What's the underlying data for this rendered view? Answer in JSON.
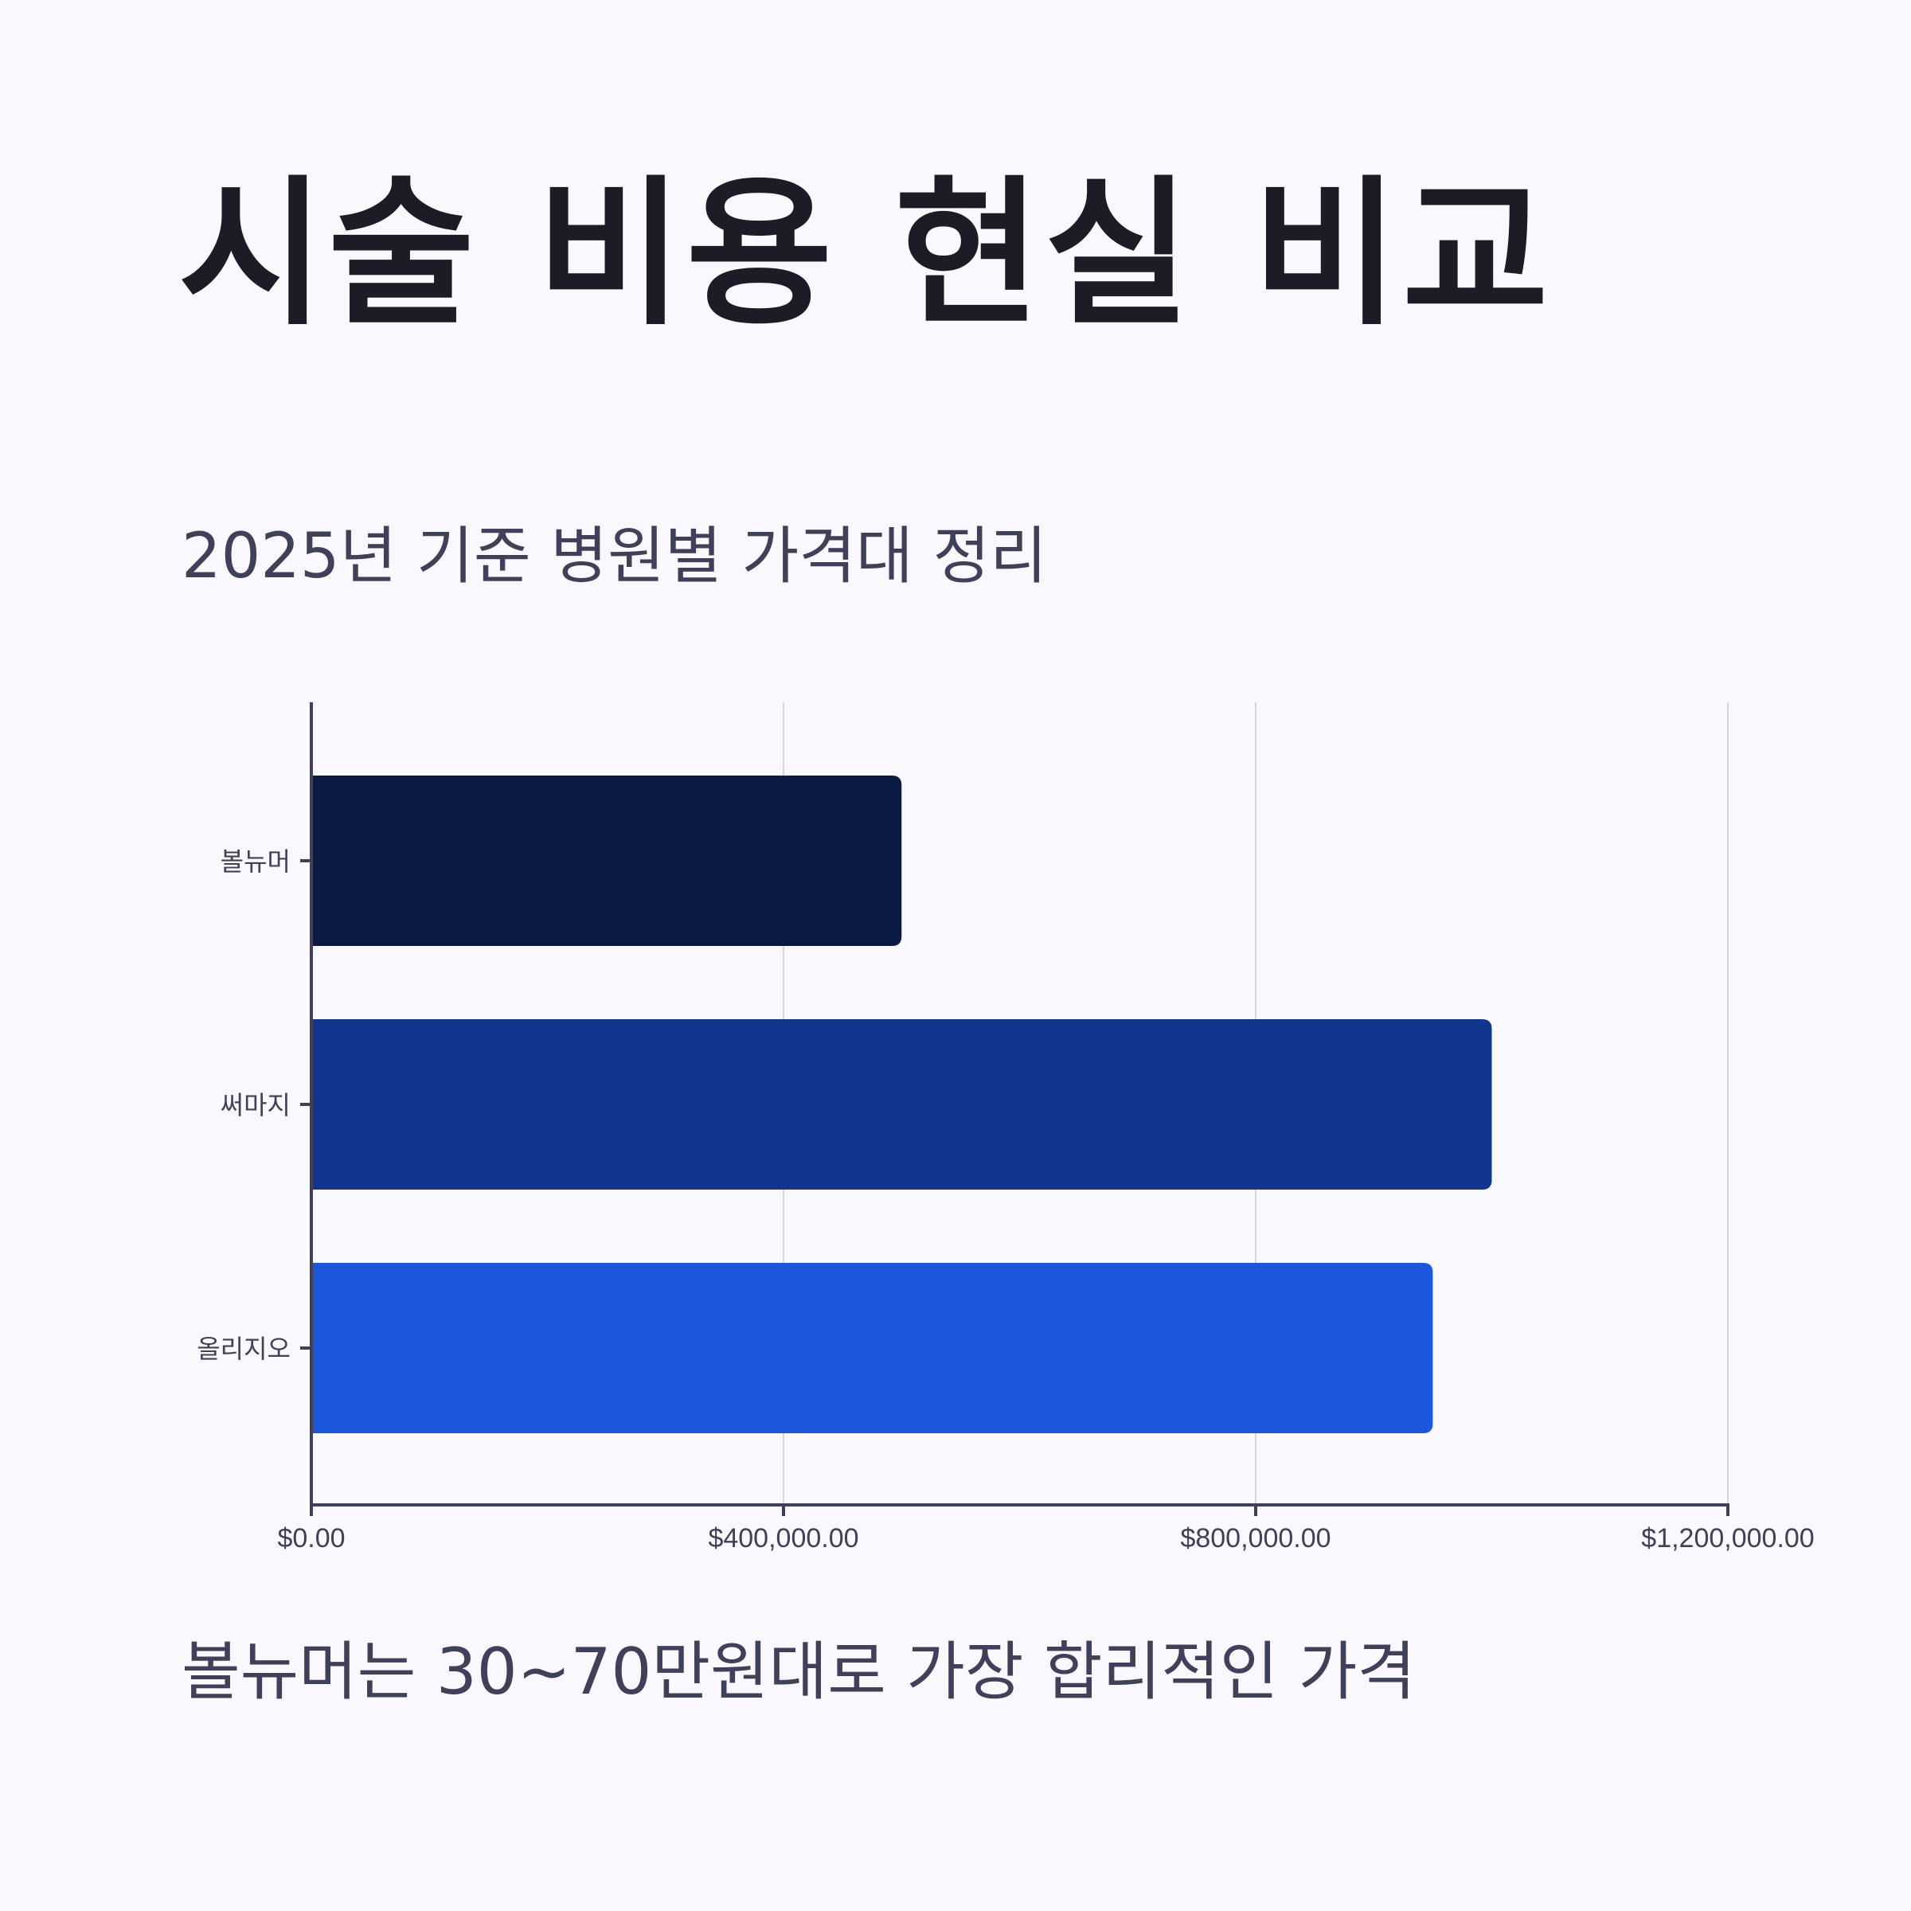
{
  "header": {
    "title": "시술 비용 현실 비교",
    "subtitle": "2025년 기준 병원별 가격대 정리"
  },
  "footer": {
    "caption": "볼뉴머는 30~70만원대로 가장 합리적인 가격"
  },
  "colors": {
    "background": "#f8f8fe",
    "title": "#1c1c27",
    "text": "#40405a",
    "grid": "#d4d4da",
    "axis": "#40405a"
  },
  "chart_data": {
    "type": "bar",
    "orientation": "horizontal",
    "categories": [
      "볼뉴머",
      "써마지",
      "올리지오"
    ],
    "values": [
      500000,
      1000000,
      950000
    ],
    "bar_colors": [
      "#0a1a42",
      "#12368e",
      "#1c56dc"
    ],
    "xlim": [
      0,
      1200000
    ],
    "x_ticks": [
      0,
      400000,
      800000,
      1200000
    ],
    "x_tick_labels": [
      "$0.00",
      "$400,000.00",
      "$800,000.00",
      "$1,200,000.00"
    ],
    "title": "",
    "xlabel": "",
    "ylabel": "",
    "grid": true,
    "legend": "none"
  }
}
